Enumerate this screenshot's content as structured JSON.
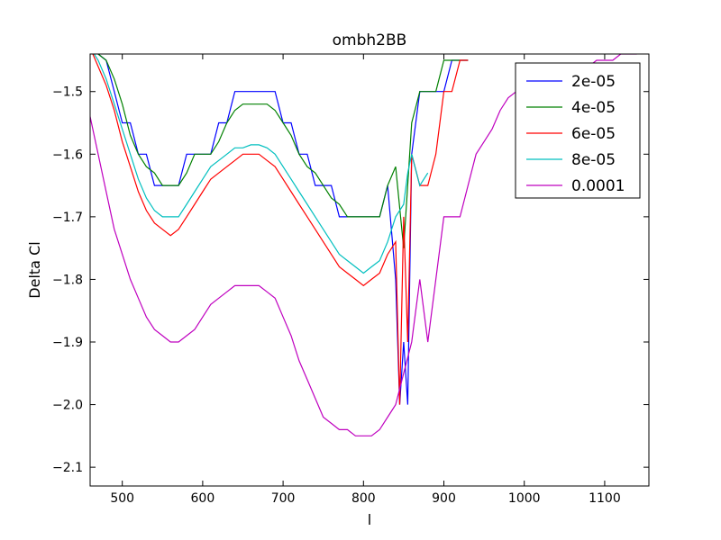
{
  "chart_data": {
    "type": "line",
    "title": "ombh2BB",
    "xlabel": "l",
    "ylabel": "Delta Cl",
    "xlim": [
      460,
      1155
    ],
    "ylim": [
      -2.13,
      -1.44
    ],
    "xticks": [
      500,
      600,
      700,
      800,
      900,
      1000,
      1100
    ],
    "yticks": [
      -2.1,
      -2.0,
      -1.9,
      -1.8,
      -1.7,
      -1.6,
      -1.5
    ],
    "ytick_labels": [
      "−2.1",
      "−2.0",
      "−1.9",
      "−1.8",
      "−1.7",
      "−1.6",
      "−1.5"
    ],
    "legend_position": "upper-right",
    "series": [
      {
        "name": "2e-05",
        "color": "#0000ff",
        "x": [
          460,
          470,
          480,
          490,
          500,
          510,
          520,
          530,
          540,
          550,
          560,
          570,
          580,
          590,
          600,
          610,
          620,
          630,
          640,
          650,
          660,
          670,
          680,
          690,
          700,
          710,
          720,
          730,
          740,
          750,
          760,
          770,
          780,
          790,
          800,
          810,
          820,
          830,
          840,
          845,
          850,
          855,
          860,
          870,
          880,
          890,
          900,
          910,
          920,
          930
        ],
        "y": [
          -1.43,
          -1.44,
          -1.45,
          -1.5,
          -1.55,
          -1.55,
          -1.6,
          -1.6,
          -1.65,
          -1.65,
          -1.65,
          -1.65,
          -1.6,
          -1.6,
          -1.6,
          -1.6,
          -1.55,
          -1.55,
          -1.5,
          -1.5,
          -1.5,
          -1.5,
          -1.5,
          -1.5,
          -1.55,
          -1.55,
          -1.6,
          -1.6,
          -1.65,
          -1.65,
          -1.65,
          -1.7,
          -1.7,
          -1.7,
          -1.7,
          -1.7,
          -1.7,
          -1.65,
          -1.8,
          -2.0,
          -1.9,
          -2.0,
          -1.6,
          -1.5,
          -1.5,
          -1.5,
          -1.5,
          -1.45,
          -1.45,
          -1.45
        ]
      },
      {
        "name": "4e-05",
        "color": "#008000",
        "x": [
          460,
          470,
          480,
          490,
          500,
          510,
          520,
          530,
          540,
          550,
          560,
          570,
          580,
          590,
          600,
          610,
          620,
          630,
          640,
          650,
          660,
          670,
          680,
          690,
          700,
          710,
          720,
          730,
          740,
          750,
          760,
          770,
          780,
          790,
          800,
          810,
          820,
          830,
          840,
          850,
          860,
          870,
          880,
          890,
          900,
          910,
          920,
          930
        ],
        "y": [
          -1.43,
          -1.44,
          -1.45,
          -1.48,
          -1.52,
          -1.57,
          -1.6,
          -1.62,
          -1.63,
          -1.65,
          -1.65,
          -1.65,
          -1.63,
          -1.6,
          -1.6,
          -1.6,
          -1.58,
          -1.55,
          -1.53,
          -1.52,
          -1.52,
          -1.52,
          -1.52,
          -1.53,
          -1.55,
          -1.57,
          -1.6,
          -1.62,
          -1.63,
          -1.65,
          -1.67,
          -1.68,
          -1.7,
          -1.7,
          -1.7,
          -1.7,
          -1.7,
          -1.65,
          -1.62,
          -1.75,
          -1.55,
          -1.5,
          -1.5,
          -1.5,
          -1.45,
          -1.45,
          -1.45,
          -1.45
        ]
      },
      {
        "name": "6e-05",
        "color": "#ff0000",
        "x": [
          460,
          470,
          480,
          490,
          500,
          510,
          520,
          530,
          540,
          550,
          560,
          570,
          580,
          590,
          600,
          610,
          620,
          630,
          640,
          650,
          660,
          670,
          680,
          690,
          700,
          710,
          720,
          730,
          740,
          750,
          760,
          770,
          780,
          790,
          800,
          810,
          820,
          830,
          840,
          845,
          850,
          855,
          860,
          870,
          880,
          890,
          900,
          910,
          920,
          930
        ],
        "y": [
          -1.43,
          -1.46,
          -1.49,
          -1.53,
          -1.58,
          -1.62,
          -1.66,
          -1.69,
          -1.71,
          -1.72,
          -1.73,
          -1.72,
          -1.7,
          -1.68,
          -1.66,
          -1.64,
          -1.63,
          -1.62,
          -1.61,
          -1.6,
          -1.6,
          -1.6,
          -1.61,
          -1.62,
          -1.64,
          -1.66,
          -1.68,
          -1.7,
          -1.72,
          -1.74,
          -1.76,
          -1.78,
          -1.79,
          -1.8,
          -1.81,
          -1.8,
          -1.79,
          -1.76,
          -1.74,
          -2.0,
          -1.7,
          -1.9,
          -1.6,
          -1.65,
          -1.65,
          -1.6,
          -1.5,
          -1.5,
          -1.45,
          -1.45
        ]
      },
      {
        "name": "8e-05",
        "color": "#00bfbf",
        "x": [
          460,
          470,
          480,
          490,
          500,
          510,
          520,
          530,
          540,
          550,
          560,
          570,
          580,
          590,
          600,
          610,
          620,
          630,
          640,
          650,
          660,
          670,
          680,
          690,
          700,
          710,
          720,
          730,
          740,
          750,
          760,
          770,
          780,
          790,
          800,
          810,
          820,
          830,
          840,
          850,
          855,
          860,
          870,
          880
        ],
        "y": [
          -1.43,
          -1.45,
          -1.48,
          -1.52,
          -1.56,
          -1.6,
          -1.64,
          -1.67,
          -1.69,
          -1.7,
          -1.7,
          -1.7,
          -1.68,
          -1.66,
          -1.64,
          -1.62,
          -1.61,
          -1.6,
          -1.59,
          -1.59,
          -1.585,
          -1.585,
          -1.59,
          -1.6,
          -1.62,
          -1.64,
          -1.66,
          -1.68,
          -1.7,
          -1.72,
          -1.74,
          -1.76,
          -1.77,
          -1.78,
          -1.79,
          -1.78,
          -1.77,
          -1.74,
          -1.7,
          -1.68,
          -1.63,
          -1.6,
          -1.65,
          -1.63
        ]
      },
      {
        "name": "0.0001",
        "color": "#bf00bf",
        "x": [
          460,
          470,
          480,
          490,
          500,
          510,
          520,
          530,
          540,
          550,
          560,
          570,
          580,
          590,
          600,
          610,
          620,
          630,
          640,
          650,
          660,
          670,
          680,
          690,
          700,
          710,
          720,
          730,
          740,
          750,
          760,
          770,
          780,
          790,
          800,
          810,
          820,
          830,
          840,
          850,
          860,
          870,
          880,
          890,
          900,
          910,
          920,
          930,
          940,
          950,
          960,
          970,
          980,
          990,
          1000,
          1010,
          1020,
          1030,
          1040,
          1050,
          1060,
          1070,
          1080,
          1090,
          1100,
          1110,
          1120,
          1130,
          1140
        ],
        "y": [
          -1.54,
          -1.6,
          -1.66,
          -1.72,
          -1.76,
          -1.8,
          -1.83,
          -1.86,
          -1.88,
          -1.89,
          -1.9,
          -1.9,
          -1.89,
          -1.88,
          -1.86,
          -1.84,
          -1.83,
          -1.82,
          -1.81,
          -1.81,
          -1.81,
          -1.81,
          -1.82,
          -1.83,
          -1.86,
          -1.89,
          -1.93,
          -1.96,
          -1.99,
          -2.02,
          -2.03,
          -2.04,
          -2.04,
          -2.05,
          -2.05,
          -2.05,
          -2.04,
          -2.02,
          -2.0,
          -1.95,
          -1.9,
          -1.8,
          -1.9,
          -1.8,
          -1.7,
          -1.7,
          -1.7,
          -1.65,
          -1.6,
          -1.58,
          -1.56,
          -1.53,
          -1.51,
          -1.5,
          -1.5,
          -1.5,
          -1.49,
          -1.48,
          -1.48,
          -1.47,
          -1.47,
          -1.46,
          -1.46,
          -1.45,
          -1.45,
          -1.45,
          -1.44,
          -1.44,
          -1.44
        ]
      }
    ]
  }
}
